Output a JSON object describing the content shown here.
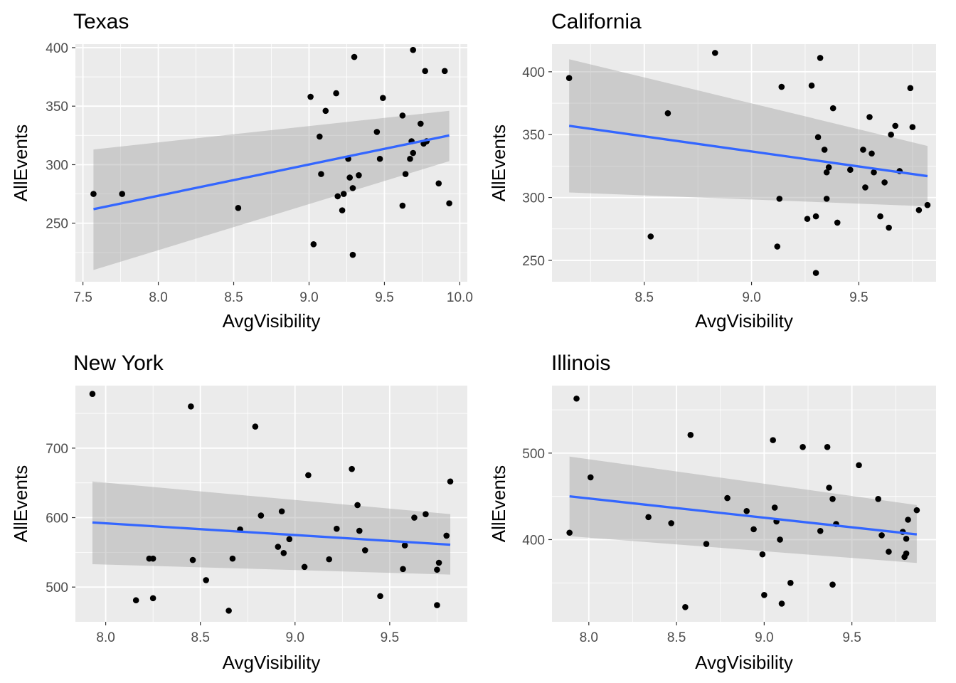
{
  "chart_data": [
    {
      "type": "scatter",
      "title": "Texas",
      "xlabel": "AvgVisibility",
      "ylabel": "AllEvents",
      "xlim": [
        7.45,
        10.05
      ],
      "ylim": [
        200,
        403
      ],
      "xticks": [
        "7.5",
        "8.0",
        "8.5",
        "9.0",
        "9.5",
        "10.0"
      ],
      "xtick_values": [
        7.5,
        8.0,
        8.5,
        9.0,
        9.5,
        10.0
      ],
      "yticks": [
        "250",
        "300",
        "350",
        "400"
      ],
      "ytick_values": [
        250,
        300,
        350,
        400
      ],
      "grid": true,
      "x": [
        7.57,
        7.76,
        8.53,
        9.01,
        9.03,
        9.07,
        9.08,
        9.11,
        9.18,
        9.19,
        9.22,
        9.23,
        9.26,
        9.27,
        9.29,
        9.29,
        9.3,
        9.33,
        9.45,
        9.47,
        9.49,
        9.62,
        9.62,
        9.64,
        9.67,
        9.68,
        9.69,
        9.69,
        9.74,
        9.76,
        9.77,
        9.78,
        9.86,
        9.9,
        9.93
      ],
      "y": [
        275,
        275,
        263,
        358,
        232,
        324,
        292,
        346,
        361,
        273,
        261,
        275,
        305,
        289,
        280,
        223,
        392,
        291,
        328,
        305,
        357,
        342,
        265,
        292,
        305,
        320,
        310,
        398,
        335,
        318,
        380,
        320,
        284,
        380,
        267
      ],
      "fit": {
        "x": [
          7.57,
          9.93
        ],
        "y": [
          262,
          325
        ],
        "ci_lower": [
          210,
          303
        ],
        "ci_upper": [
          313,
          346
        ]
      },
      "point_color": "#000000",
      "line_color": "#3366FF",
      "band_color": "#CCCCCC"
    },
    {
      "type": "scatter",
      "title": "California",
      "xlabel": "AvgVisibility",
      "ylabel": "AllEvents",
      "xlim": [
        8.07,
        9.86
      ],
      "ylim": [
        233,
        422
      ],
      "xticks": [
        "8.5",
        "9.0",
        "9.5"
      ],
      "xtick_values": [
        8.5,
        9.0,
        9.5
      ],
      "yticks": [
        "250",
        "300",
        "350",
        "400"
      ],
      "ytick_values": [
        250,
        300,
        350,
        400
      ],
      "grid": true,
      "x": [
        8.15,
        8.53,
        8.61,
        8.83,
        9.12,
        9.13,
        9.14,
        9.26,
        9.28,
        9.3,
        9.3,
        9.31,
        9.32,
        9.34,
        9.35,
        9.35,
        9.36,
        9.38,
        9.4,
        9.46,
        9.52,
        9.53,
        9.55,
        9.56,
        9.57,
        9.6,
        9.62,
        9.64,
        9.65,
        9.67,
        9.69,
        9.74,
        9.75,
        9.78,
        9.82
      ],
      "y": [
        395,
        269,
        367,
        415,
        261,
        299,
        388,
        283,
        389,
        285,
        240,
        348,
        411,
        338,
        320,
        299,
        324,
        371,
        280,
        322,
        338,
        308,
        364,
        335,
        320,
        285,
        312,
        276,
        350,
        357,
        321,
        387,
        356,
        290,
        294
      ],
      "fit": {
        "x": [
          8.15,
          9.82
        ],
        "y": [
          357,
          317
        ],
        "ci_lower": [
          304,
          293
        ],
        "ci_upper": [
          410,
          341
        ]
      },
      "point_color": "#000000",
      "line_color": "#3366FF",
      "band_color": "#CCCCCC"
    },
    {
      "type": "scatter",
      "title": "New York",
      "xlabel": "AvgVisibility",
      "ylabel": "AllEvents",
      "xlim": [
        7.84,
        9.91
      ],
      "ylim": [
        450,
        790
      ],
      "xticks": [
        "8.0",
        "8.5",
        "9.0",
        "9.5"
      ],
      "xtick_values": [
        8.0,
        8.5,
        9.0,
        9.5
      ],
      "yticks": [
        "500",
        "600",
        "700"
      ],
      "ytick_values": [
        500,
        600,
        700
      ],
      "grid": true,
      "x": [
        7.93,
        8.16,
        8.23,
        8.25,
        8.25,
        8.45,
        8.46,
        8.53,
        8.65,
        8.67,
        8.71,
        8.79,
        8.82,
        8.91,
        8.93,
        8.94,
        8.97,
        9.05,
        9.07,
        9.18,
        9.22,
        9.3,
        9.33,
        9.34,
        9.37,
        9.45,
        9.57,
        9.58,
        9.63,
        9.69,
        9.75,
        9.75,
        9.76,
        9.8,
        9.82
      ],
      "y": [
        778,
        481,
        541,
        541,
        484,
        760,
        539,
        510,
        466,
        541,
        583,
        731,
        603,
        558,
        609,
        549,
        569,
        529,
        661,
        540,
        584,
        670,
        618,
        581,
        553,
        487,
        526,
        560,
        600,
        605,
        474,
        525,
        535,
        574,
        652
      ],
      "fit": {
        "x": [
          7.93,
          9.82
        ],
        "y": [
          593,
          561
        ],
        "ci_lower": [
          533,
          518
        ],
        "ci_upper": [
          652,
          605
        ]
      },
      "point_color": "#000000",
      "line_color": "#3366FF",
      "band_color": "#CCCCCC"
    },
    {
      "type": "scatter",
      "title": "Illinois",
      "xlabel": "AvgVisibility",
      "ylabel": "AllEvents",
      "xlim": [
        7.79,
        9.98
      ],
      "ylim": [
        305,
        578
      ],
      "xticks": [
        "8.0",
        "8.5",
        "9.0",
        "9.5"
      ],
      "xtick_values": [
        8.0,
        8.5,
        9.0,
        9.5
      ],
      "yticks": [
        "400",
        "500"
      ],
      "ytick_values": [
        400,
        500
      ],
      "grid": true,
      "x": [
        7.89,
        7.93,
        8.01,
        8.34,
        8.47,
        8.55,
        8.58,
        8.67,
        8.79,
        8.9,
        8.94,
        8.99,
        9.0,
        9.05,
        9.06,
        9.07,
        9.09,
        9.1,
        9.15,
        9.22,
        9.32,
        9.36,
        9.37,
        9.39,
        9.39,
        9.41,
        9.54,
        9.65,
        9.67,
        9.71,
        9.79,
        9.8,
        9.81,
        9.81,
        9.82,
        9.87
      ],
      "y": [
        408,
        563,
        472,
        426,
        419,
        322,
        521,
        395,
        448,
        433,
        412,
        383,
        336,
        515,
        437,
        421,
        400,
        326,
        350,
        507,
        410,
        507,
        460,
        348,
        447,
        418,
        486,
        447,
        405,
        386,
        409,
        380,
        401,
        384,
        423,
        434
      ],
      "fit": {
        "x": [
          7.89,
          9.87
        ],
        "y": [
          450,
          406
        ],
        "ci_lower": [
          404,
          373
        ],
        "ci_upper": [
          496,
          440
        ]
      },
      "point_color": "#000000",
      "line_color": "#3366FF",
      "band_color": "#CCCCCC"
    }
  ]
}
